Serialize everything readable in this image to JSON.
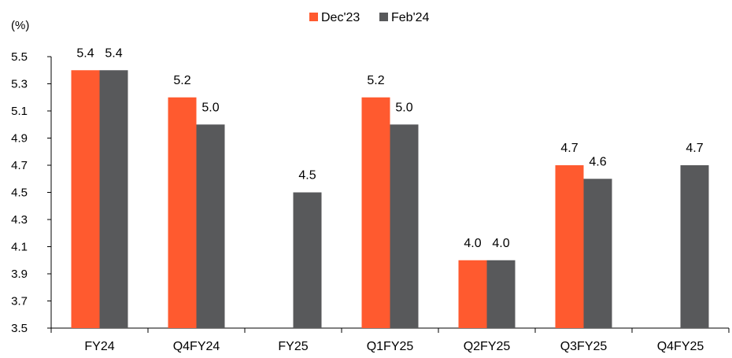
{
  "chart_data": {
    "type": "bar",
    "ylabel": "(%)",
    "ylim": [
      3.5,
      5.5
    ],
    "yticks": [
      "3.5",
      "3.7",
      "3.9",
      "4.1",
      "4.3",
      "4.5",
      "4.7",
      "4.9",
      "5.1",
      "5.3",
      "5.5"
    ],
    "categories": [
      "FY24",
      "Q4FY24",
      "FY25",
      "Q1FY25",
      "Q2FY25",
      "Q3FY25",
      "Q4FY25"
    ],
    "series": [
      {
        "name": "Dec'23",
        "color": "#ff5a2f",
        "values": [
          5.4,
          5.2,
          null,
          5.2,
          4.0,
          4.7,
          null
        ],
        "labels": [
          "5.4",
          "5.2",
          "",
          "5.2",
          "4.0",
          "4.7",
          ""
        ]
      },
      {
        "name": "Feb'24",
        "color": "#58595b",
        "values": [
          5.4,
          5.0,
          4.5,
          5.0,
          4.0,
          4.6,
          4.7
        ],
        "labels": [
          "5.4",
          "5.0",
          "4.5",
          "5.0",
          "4.0",
          "4.6",
          "4.7"
        ]
      }
    ],
    "legend_position": "top-center",
    "grid": false
  }
}
